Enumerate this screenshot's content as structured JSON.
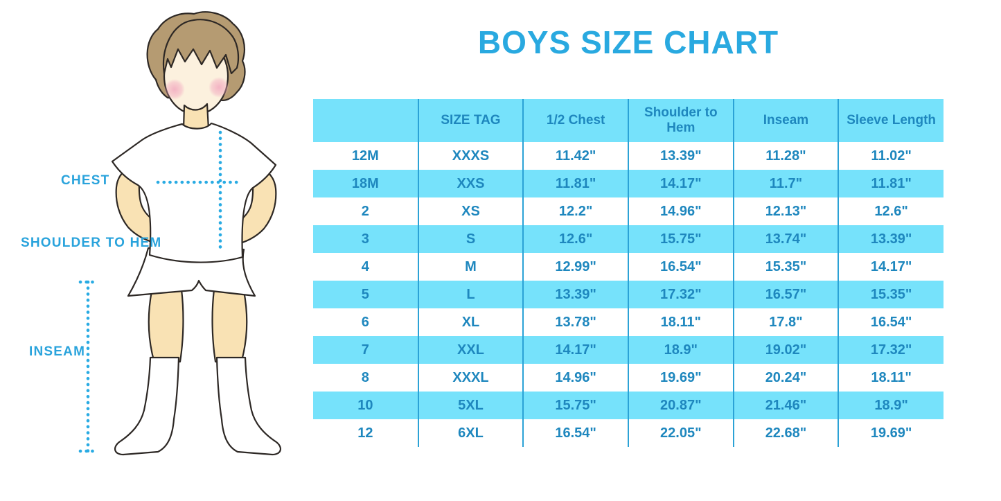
{
  "page": {
    "title": "BOYS SIZE CHART"
  },
  "figure": {
    "labels": {
      "chest": "CHEST",
      "shoulder_to_hem": "SHOULDER TO HEM",
      "inseam": "INSEAM"
    }
  },
  "colors": {
    "title_blue": "#29A9E0",
    "figure_label_blue": "#29A3DC",
    "dotted_line_blue": "#29ABE3",
    "table_stripe_cyan": "#76E2FB",
    "table_grid_blue": "#2BA2D6",
    "table_text_blue": "#1E87BE",
    "skin": "#F9E2B4",
    "face": "#FCF1DE",
    "hair_brown": "#B59B72",
    "cheek_pink": "#F2A9BF"
  },
  "chart_data": {
    "type": "table",
    "title": "BOYS SIZE CHART",
    "columns": [
      "",
      "SIZE TAG",
      "1/2 Chest",
      "Shoulder to Hem",
      "Inseam",
      "Sleeve Length"
    ],
    "rows": [
      [
        "12M",
        "XXXS",
        "11.42\"",
        "13.39\"",
        "11.28\"",
        "11.02\""
      ],
      [
        "18M",
        "XXS",
        "11.81\"",
        "14.17\"",
        "11.7\"",
        "11.81\""
      ],
      [
        "2",
        "XS",
        "12.2\"",
        "14.96\"",
        "12.13\"",
        "12.6\""
      ],
      [
        "3",
        "S",
        "12.6\"",
        "15.75\"",
        "13.74\"",
        "13.39\""
      ],
      [
        "4",
        "M",
        "12.99\"",
        "16.54\"",
        "15.35\"",
        "14.17\""
      ],
      [
        "5",
        "L",
        "13.39\"",
        "17.32\"",
        "16.57\"",
        "15.35\""
      ],
      [
        "6",
        "XL",
        "13.78\"",
        "18.11\"",
        "17.8\"",
        "16.54\""
      ],
      [
        "7",
        "XXL",
        "14.17\"",
        "18.9\"",
        "19.02\"",
        "17.32\""
      ],
      [
        "8",
        "XXXL",
        "14.96\"",
        "19.69\"",
        "20.24\"",
        "18.11\""
      ],
      [
        "10",
        "5XL",
        "15.75\"",
        "20.87\"",
        "21.46\"",
        "18.9\""
      ],
      [
        "12",
        "6XL",
        "16.54\"",
        "22.05\"",
        "22.68\"",
        "19.69\""
      ]
    ],
    "layout": {
      "striped_rows": true,
      "stripe_pattern": "white/cyan alternating starting white",
      "grid": "vertical column separators only",
      "header_background": "cyan"
    }
  }
}
